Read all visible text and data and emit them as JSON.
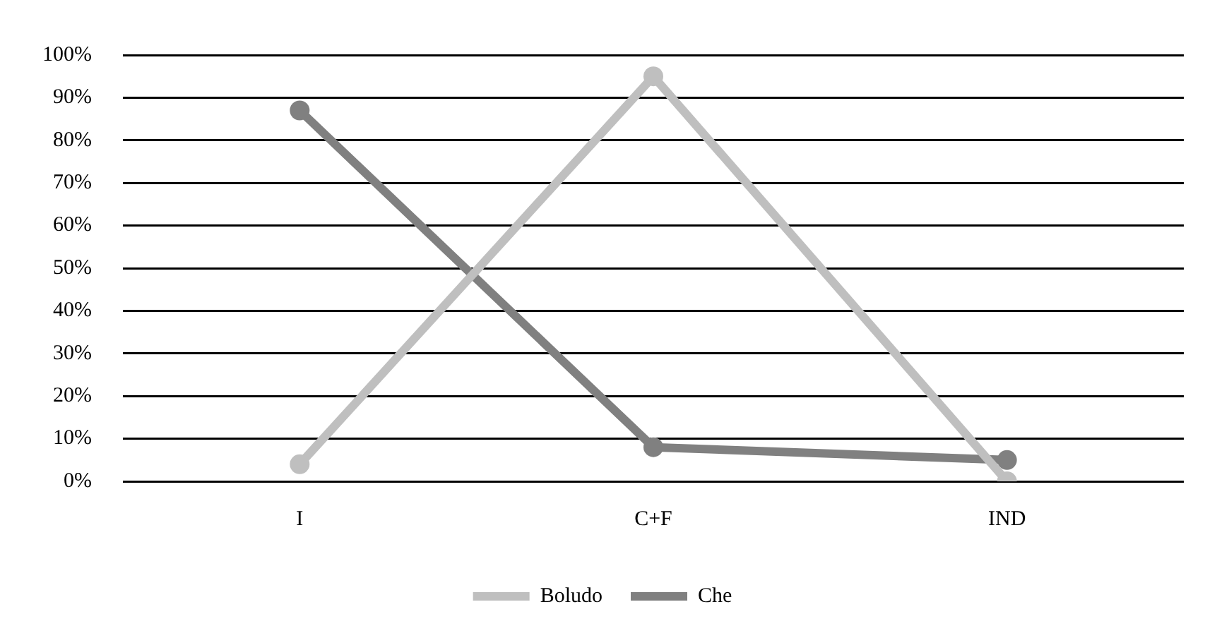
{
  "chart_data": {
    "type": "line",
    "categories": [
      "I",
      "C+F",
      "IND"
    ],
    "series": [
      {
        "name": "Boludo",
        "color": "#bfbfbf",
        "values": [
          4,
          95,
          0
        ]
      },
      {
        "name": "Che",
        "color": "#808080",
        "values": [
          87,
          8,
          5
        ]
      }
    ],
    "ylim": [
      0,
      100
    ],
    "yticks": [
      {
        "value": 0,
        "label": "0%"
      },
      {
        "value": 10,
        "label": "10%"
      },
      {
        "value": 20,
        "label": "20%"
      },
      {
        "value": 30,
        "label": "30%"
      },
      {
        "value": 40,
        "label": "40%"
      },
      {
        "value": 50,
        "label": "50%"
      },
      {
        "value": 60,
        "label": "60%"
      },
      {
        "value": 70,
        "label": "70%"
      },
      {
        "value": 80,
        "label": "80%"
      },
      {
        "value": 90,
        "label": "90%"
      },
      {
        "value": 100,
        "label": "100%"
      }
    ],
    "grid": "y",
    "legend": "bottom",
    "marker": "circle",
    "line_style": "solid"
  }
}
